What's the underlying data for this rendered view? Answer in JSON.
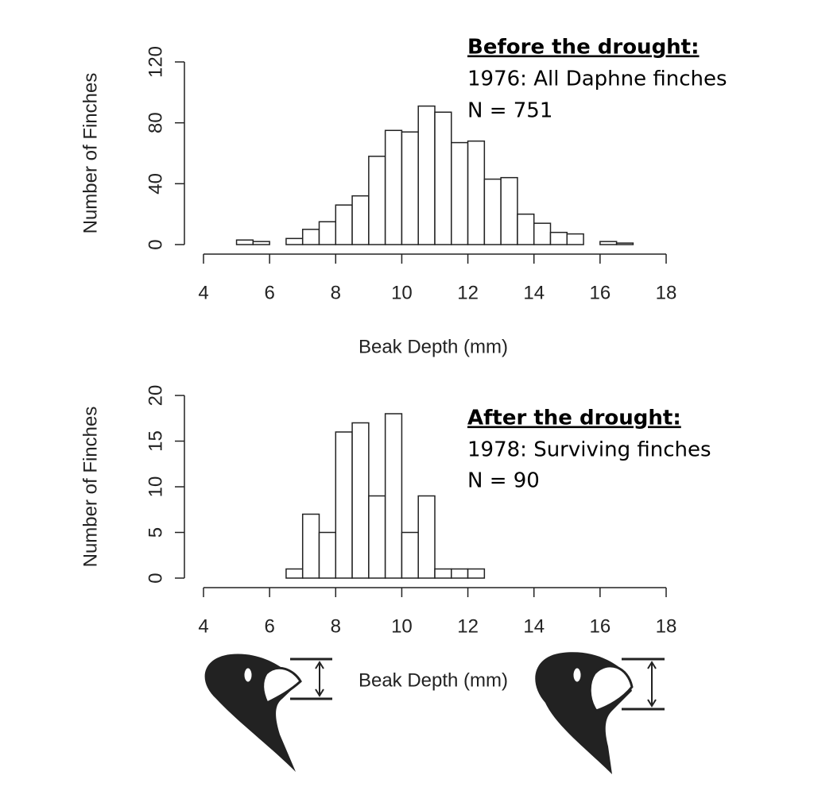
{
  "chart_data": [
    {
      "type": "histogram",
      "annotations": [
        "Before the drought:",
        "1976: All Daphne finches",
        "N = 751"
      ],
      "xlabel": "Beak Depth (mm)",
      "ylabel": "Number of Finches",
      "bins": [
        5,
        5.5,
        6,
        6.5,
        7,
        7.5,
        8,
        8.5,
        9,
        9.5,
        10,
        10.5,
        11,
        11.5,
        12,
        12.5,
        13,
        13.5,
        14,
        14.5,
        15,
        15.5,
        16,
        16.5,
        17
      ],
      "values": [
        3,
        2,
        0,
        4,
        10,
        15,
        26,
        32,
        58,
        75,
        74,
        91,
        87,
        67,
        68,
        43,
        44,
        20,
        14,
        8,
        7,
        0,
        2,
        1
      ],
      "color": "#ffffff",
      "xlim": [
        4,
        18
      ],
      "xticks": [
        4,
        6,
        8,
        10,
        12,
        14,
        16,
        18
      ],
      "ylim": [
        0,
        120
      ],
      "yticks": [
        0,
        40,
        80,
        120
      ]
    },
    {
      "type": "histogram",
      "annotations": [
        "After the drought:",
        "1978: Surviving finches",
        "N = 90"
      ],
      "xlabel": "Beak Depth (mm)",
      "ylabel": "Number of Finches",
      "bins": [
        6.5,
        7,
        7.5,
        8,
        8.5,
        9,
        9.5,
        10,
        10.5,
        11,
        11.5,
        12,
        12.5
      ],
      "values": [
        1,
        7,
        5,
        16,
        17,
        9,
        18,
        5,
        9,
        1,
        1,
        1
      ],
      "color": "#ffffff",
      "xlim": [
        4,
        18
      ],
      "xticks": [
        4,
        6,
        8,
        10,
        12,
        14,
        16,
        18
      ],
      "ylim": [
        0,
        20
      ],
      "yticks": [
        0,
        5,
        10,
        15,
        20
      ]
    }
  ]
}
